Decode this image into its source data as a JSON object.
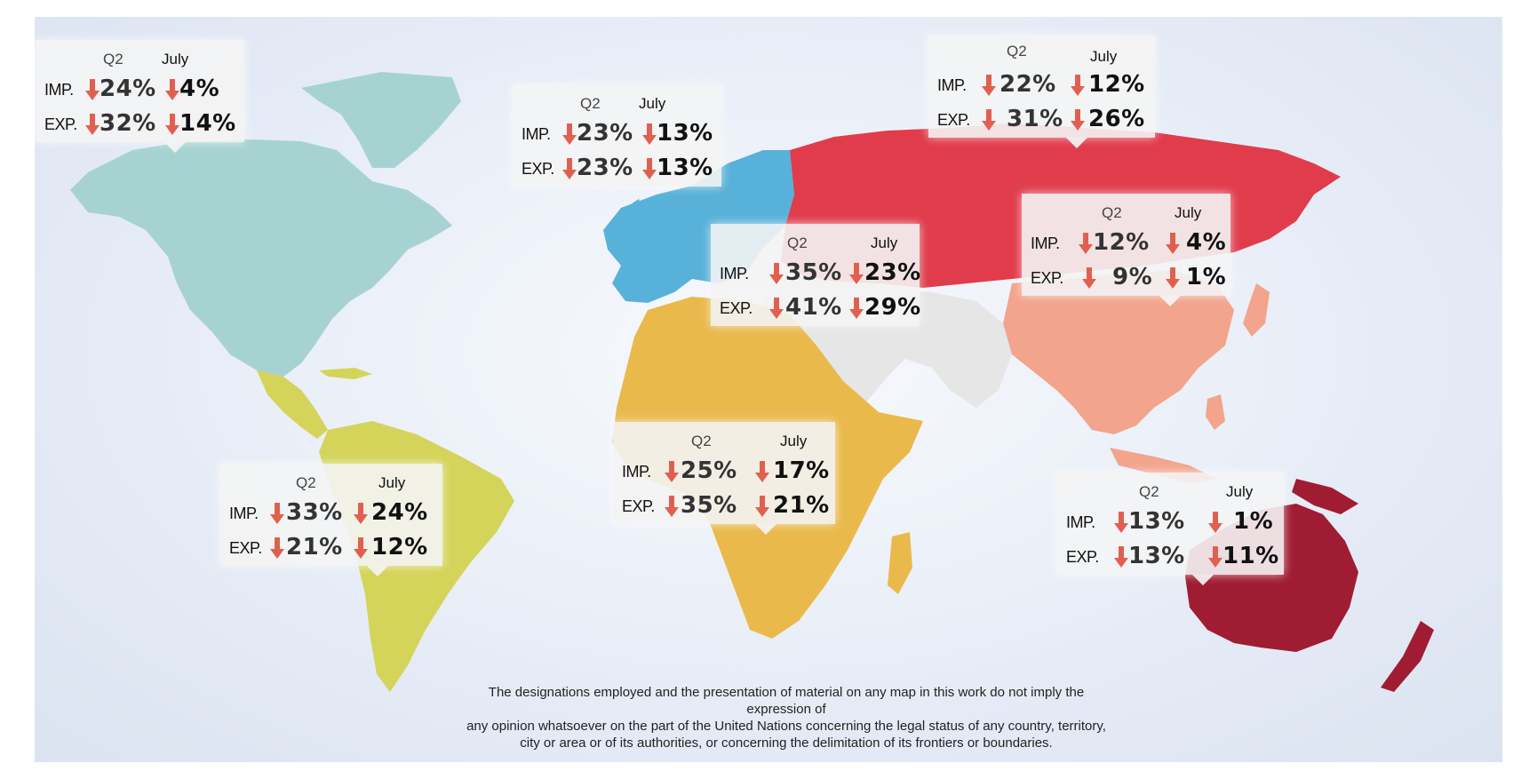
{
  "colors": {
    "north_america": "#a6d3d1",
    "south_america": "#d4d45a",
    "europe": "#58b1d8",
    "russia": "#e03c4b",
    "africa": "#e9b94c",
    "middle_east": "#e6e6e6",
    "east_asia": "#f2a48c",
    "oceania": "#a01c33",
    "arrow": "#e06050"
  },
  "callouts": [
    {
      "id": "north-america",
      "q2": "Q2",
      "july": "July",
      "imp_label": "IMP.",
      "exp_label": "EXP.",
      "imp_q2": "24%",
      "imp_july": "4%",
      "exp_q2": "32%",
      "exp_july": "14%"
    },
    {
      "id": "europe",
      "q2": "Q2",
      "july": "July",
      "imp_label": "IMP.",
      "exp_label": "EXP.",
      "imp_q2": "23%",
      "imp_july": "13%",
      "exp_q2": "23%",
      "exp_july": "13%"
    },
    {
      "id": "russia",
      "q2": "Q2",
      "july": "July",
      "imp_label": "IMP.",
      "exp_label": "EXP.",
      "imp_q2": "22%",
      "imp_july": "12%",
      "exp_q2": "31%",
      "exp_july": "26%"
    },
    {
      "id": "east-asia",
      "q2": "Q2",
      "july": "July",
      "imp_label": "IMP.",
      "exp_label": "EXP.",
      "imp_q2": "12%",
      "imp_july": "4%",
      "exp_q2": "9%",
      "exp_july": "1%"
    },
    {
      "id": "middle-east",
      "q2": "Q2",
      "july": "July",
      "imp_label": "IMP.",
      "exp_label": "EXP.",
      "imp_q2": "35%",
      "imp_july": "23%",
      "exp_q2": "41%",
      "exp_july": "29%"
    },
    {
      "id": "africa",
      "q2": "Q2",
      "july": "July",
      "imp_label": "IMP.",
      "exp_label": "EXP.",
      "imp_q2": "25%",
      "imp_july": "17%",
      "exp_q2": "35%",
      "exp_july": "21%"
    },
    {
      "id": "south-america",
      "q2": "Q2",
      "july": "July",
      "imp_label": "IMP.",
      "exp_label": "EXP.",
      "imp_q2": "33%",
      "imp_july": "24%",
      "exp_q2": "21%",
      "exp_july": "12%"
    },
    {
      "id": "oceania",
      "q2": "Q2",
      "july": "July",
      "imp_label": "IMP.",
      "exp_label": "EXP.",
      "imp_q2": "13%",
      "imp_july": "1%",
      "exp_q2": "13%",
      "exp_july": "11%"
    }
  ],
  "disclaimer": {
    "line1": "The designations employed and the presentation of material on any map in this  work do not imply the expression of",
    "line2": "any opinion whatsoever on the part of the  United Nations concerning the legal status of any country, territory,",
    "line3": "city or area or of its authorities, or concerning the delimitation of its frontiers or boundaries."
  }
}
